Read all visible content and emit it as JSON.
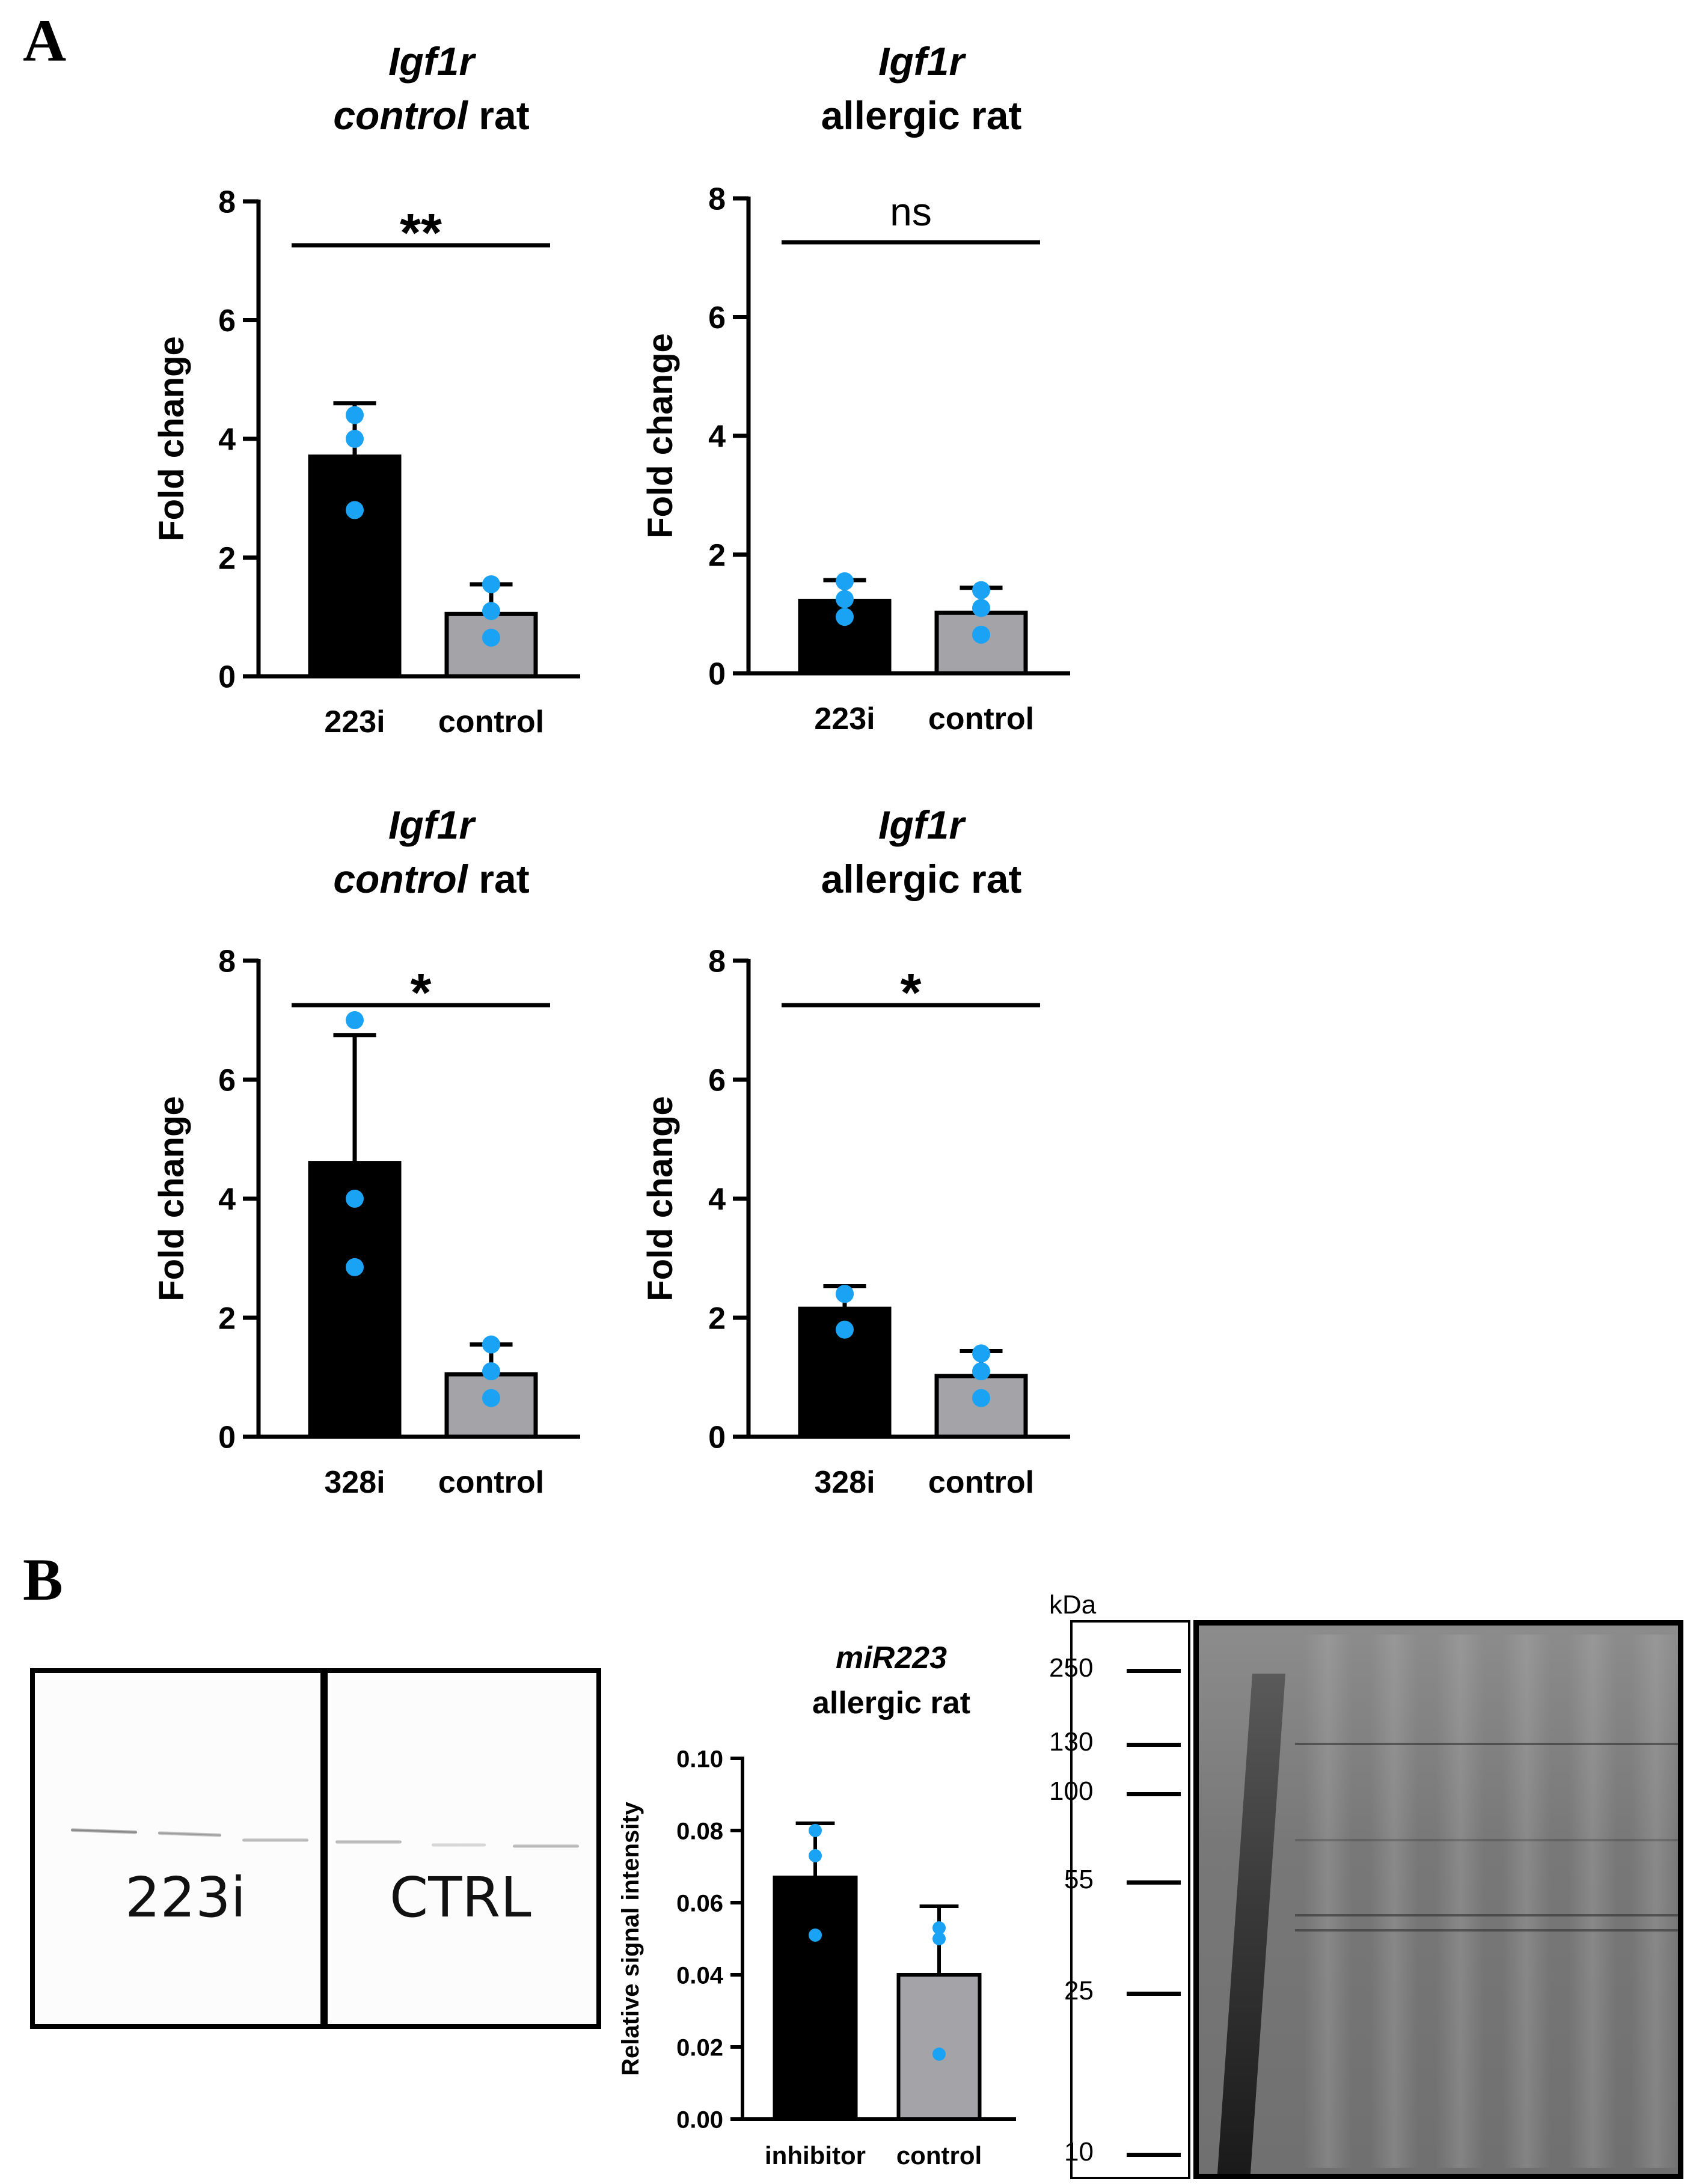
{
  "panel_labels": {
    "a": "A",
    "b": "B"
  },
  "colors": {
    "treated_bar": "#000000",
    "control_bar": "#a3a3a8",
    "points": "#1aa3f5",
    "axis": "#000000"
  },
  "chart_data": [
    {
      "type": "bar",
      "title_gene": "Igf1r",
      "title_line2_italic": "control",
      "title_line2_rest": " rat",
      "ylabel": "Fold change",
      "ylim": [
        0,
        8
      ],
      "yticks": [
        "0",
        "2",
        "4",
        "6",
        "8"
      ],
      "categories": [
        "223i",
        "control"
      ],
      "values": [
        3.7,
        1.05
      ],
      "errors": [
        0.9,
        0.5
      ],
      "points": [
        [
          4.4,
          4.0,
          2.8
        ],
        [
          1.55,
          1.1,
          0.65
        ]
      ],
      "significance": "**"
    },
    {
      "type": "bar",
      "title_gene": "Igf1r",
      "title_line2_italic": "",
      "title_line2_rest": "allergic rat",
      "ylabel": "Fold change",
      "ylim": [
        0,
        8
      ],
      "yticks": [
        "0",
        "2",
        "4",
        "6",
        "8"
      ],
      "categories": [
        "223i",
        "control"
      ],
      "values": [
        1.22,
        1.02
      ],
      "errors": [
        0.35,
        0.42
      ],
      "points": [
        [
          1.55,
          1.25,
          0.95
        ],
        [
          1.4,
          1.1,
          0.65
        ]
      ],
      "significance": "ns"
    },
    {
      "type": "bar",
      "title_gene": "Igf1r",
      "title_line2_italic": "control",
      "title_line2_rest": " rat",
      "ylabel": "Fold change",
      "ylim": [
        0,
        8
      ],
      "yticks": [
        "0",
        "2",
        "4",
        "6",
        "8"
      ],
      "categories": [
        "328i",
        "control"
      ],
      "values": [
        4.6,
        1.05
      ],
      "errors": [
        2.15,
        0.5
      ],
      "points": [
        [
          7.0,
          4.0,
          2.85
        ],
        [
          1.55,
          1.1,
          0.65
        ]
      ],
      "significance": "*"
    },
    {
      "type": "bar",
      "title_gene": "Igf1r",
      "title_line2_italic": "",
      "title_line2_rest": "allergic rat",
      "ylabel": "Fold change",
      "ylim": [
        0,
        8
      ],
      "yticks": [
        "0",
        "2",
        "4",
        "6",
        "8"
      ],
      "categories": [
        "328i",
        "control"
      ],
      "values": [
        2.15,
        1.02
      ],
      "errors": [
        0.38,
        0.42
      ],
      "points": [
        [
          2.4,
          2.4,
          1.8
        ],
        [
          1.4,
          1.1,
          0.65
        ]
      ],
      "significance": "*"
    },
    {
      "type": "bar",
      "title_gene": "miR223",
      "title_line2_italic": "",
      "title_line2_rest": "allergic rat",
      "ylabel": "Relative signal intensity",
      "ylim": [
        0,
        0.1
      ],
      "yticks": [
        "0.00",
        "0.02",
        "0.04",
        "0.06",
        "0.08",
        "0.10"
      ],
      "categories": [
        "inhibitor",
        "control"
      ],
      "values": [
        0.067,
        0.04
      ],
      "errors": [
        0.015,
        0.019
      ],
      "points": [
        [
          0.08,
          0.073,
          0.051
        ],
        [
          0.053,
          0.05,
          0.018
        ]
      ],
      "significance": ""
    }
  ],
  "western_blot": {
    "left_label": "223i",
    "right_label": "CTRL"
  },
  "ladder": {
    "unit": "kDa",
    "markers": [
      "250",
      "130",
      "100",
      "55",
      "25",
      "10"
    ]
  }
}
